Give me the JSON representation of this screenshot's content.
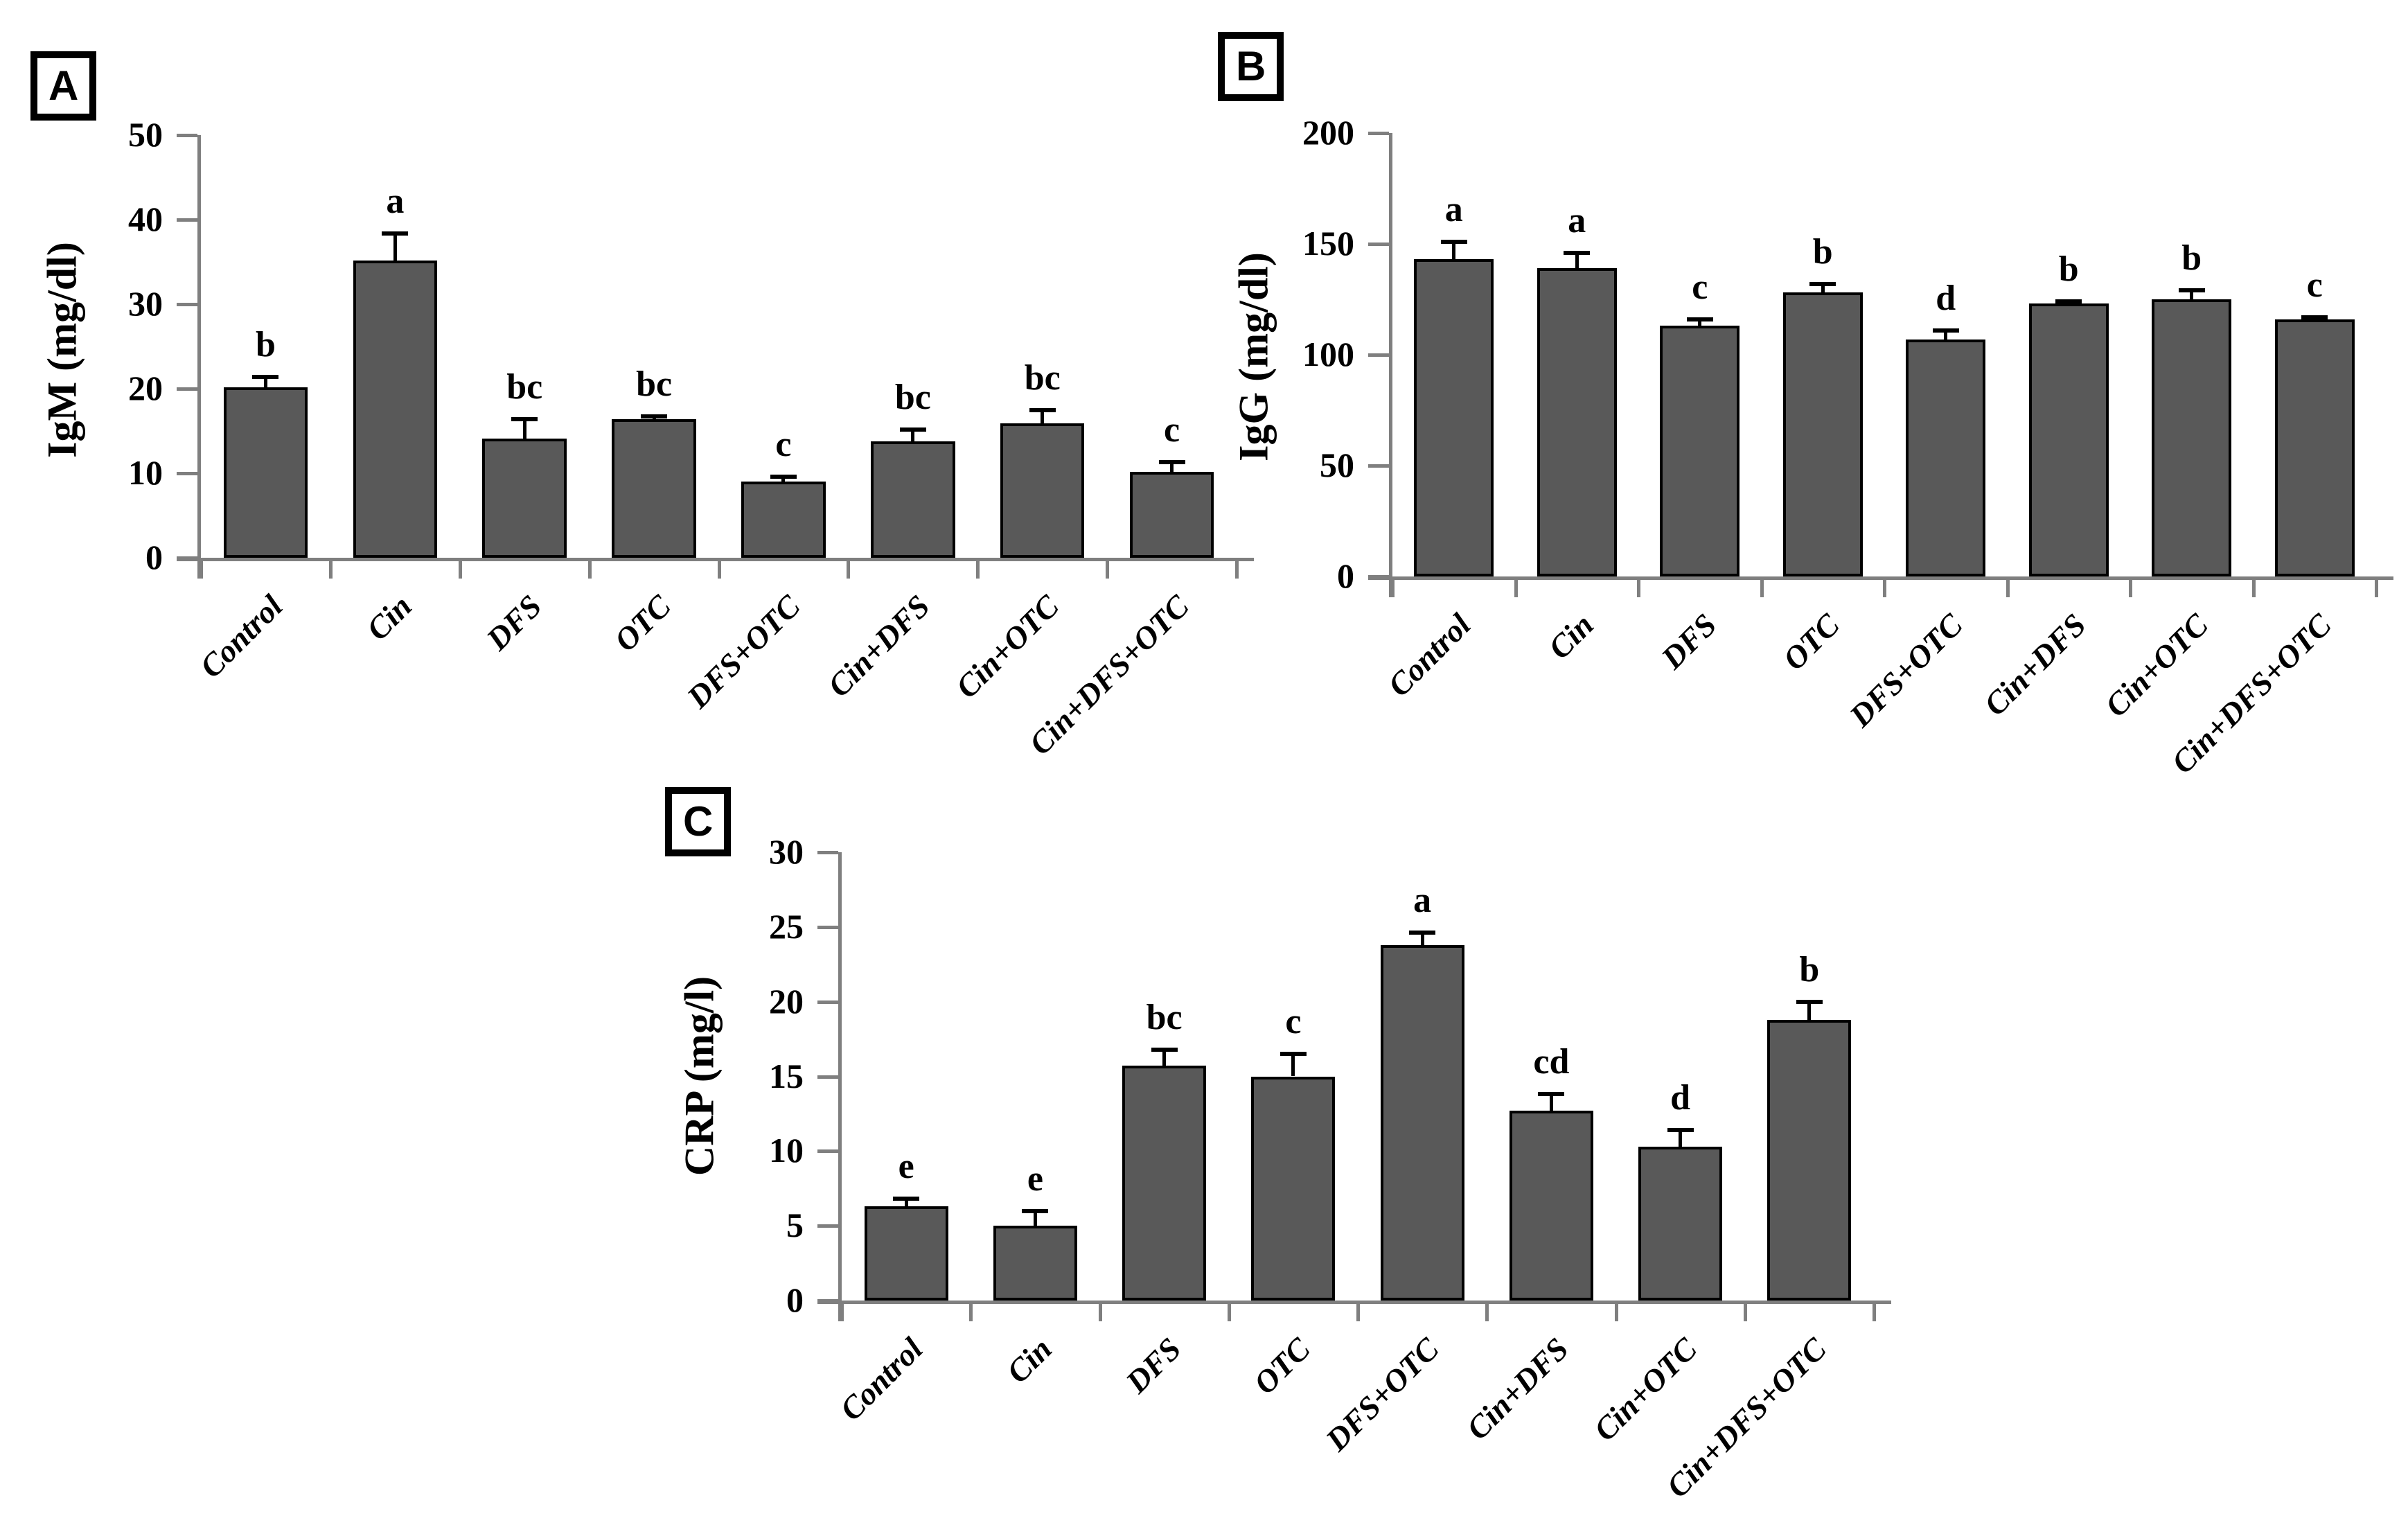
{
  "figure": {
    "background": "#ffffff",
    "bar_color": "#595959",
    "bar_border_color": "#000000",
    "axis_color": "#7f7f7f",
    "text_color": "#000000",
    "panel_labels": [
      "A",
      "B",
      "C"
    ]
  },
  "chart_data": [
    {
      "panel": "A",
      "type": "bar",
      "title": "",
      "xlabel": "",
      "ylabel": "IgM (mg/dl)",
      "ylim": [
        0,
        50
      ],
      "ytick_step": 10,
      "ytick_labels": [
        "0",
        "10",
        "20",
        "30",
        "40",
        "50"
      ],
      "grid": false,
      "legend": "none",
      "categories": [
        "Control",
        "Cin",
        "DFS",
        "OTC",
        "DFS+OTC",
        "Cin+DFS",
        "Cin+OTC",
        "Cin+DFS+OTC"
      ],
      "values": [
        20.2,
        35.2,
        14.1,
        16.4,
        9.0,
        13.8,
        15.9,
        10.2
      ],
      "errors": [
        1.2,
        3.2,
        2.3,
        0.3,
        0.6,
        1.4,
        1.6,
        1.1
      ],
      "sig_letters": [
        "b",
        "a",
        "bc",
        "bc",
        "c",
        "bc",
        "bc",
        "c"
      ]
    },
    {
      "panel": "B",
      "type": "bar",
      "title": "",
      "xlabel": "",
      "ylabel": "IgG (mg/dl)",
      "ylim": [
        0,
        200
      ],
      "ytick_step": 50,
      "ytick_labels": [
        "0",
        "50",
        "100",
        "150",
        "200"
      ],
      "grid": false,
      "legend": "none",
      "categories": [
        "Control",
        "Cin",
        "DFS",
        "OTC",
        "DFS+OTC",
        "Cin+DFS",
        "Cin+OTC",
        "Cin+DFS+OTC"
      ],
      "values": [
        143,
        139,
        113,
        128,
        107,
        123,
        125,
        116
      ],
      "errors": [
        8,
        7,
        3,
        4,
        4,
        1,
        4,
        1
      ],
      "sig_letters": [
        "a",
        "a",
        "c",
        "b",
        "d",
        "b",
        "b",
        "c"
      ]
    },
    {
      "panel": "C",
      "type": "bar",
      "title": "",
      "xlabel": "",
      "ylabel": "CRP (mg/l)",
      "ylim": [
        0,
        30
      ],
      "ytick_step": 5,
      "ytick_labels": [
        "0",
        "5",
        "10",
        "15",
        "20",
        "25",
        "30"
      ],
      "grid": false,
      "legend": "none",
      "categories": [
        "Control",
        "Cin",
        "DFS",
        "OTC",
        "DFS+OTC",
        "Cin+DFS",
        "Cin+OTC",
        "Cin+DFS+OTC"
      ],
      "values": [
        6.3,
        5.0,
        15.7,
        15.0,
        23.8,
        12.7,
        10.3,
        18.8
      ],
      "errors": [
        0.5,
        1.0,
        1.1,
        1.5,
        0.8,
        1.1,
        1.1,
        1.2
      ],
      "sig_letters": [
        "e",
        "e",
        "bc",
        "c",
        "a",
        "cd",
        "d",
        "b"
      ]
    }
  ]
}
